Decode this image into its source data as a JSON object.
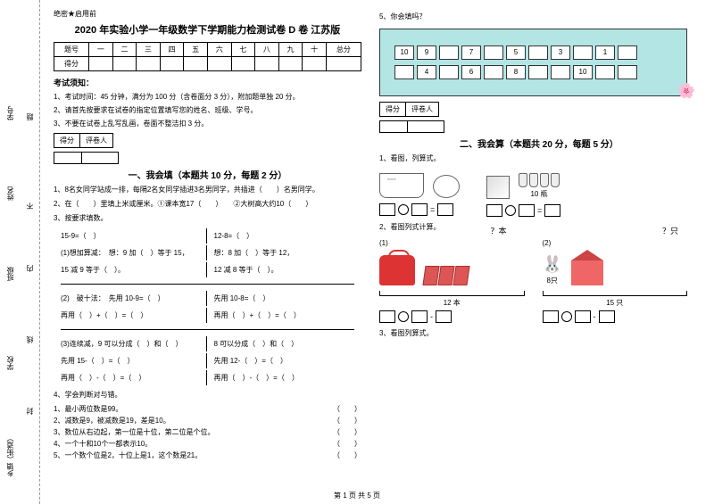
{
  "margin": {
    "l1": "乡镇（街道）",
    "l2": "学校",
    "l3": "班级",
    "l4": "姓名",
    "l5": "学号",
    "dash1": "封",
    "dash2": "线",
    "dash3": "内",
    "dash4": "不",
    "dash5": "答",
    "dash6": "题"
  },
  "header": {
    "secret": "绝密★启用前"
  },
  "title": "2020 年实验小学一年级数学下学期能力检测试卷 D 卷 江苏版",
  "scoreTable": {
    "headers": [
      "题号",
      "一",
      "二",
      "三",
      "四",
      "五",
      "六",
      "七",
      "八",
      "九",
      "十",
      "总分"
    ],
    "row2": "得分"
  },
  "notice": {
    "head": "考试须知：",
    "n1": "1、考试时间：45 分钟，满分为 100 分（含卷面分 3 分），附加题单独 20 分。",
    "n2": "2、请首先按要求在试卷的指定位置填写您的姓名、班级、学号。",
    "n3": "3、不要在试卷上乱写乱画，卷面不整洁扣 3 分。"
  },
  "scoreBox": {
    "c1": "得分",
    "c2": "评卷人"
  },
  "s1": {
    "title": "一、我会填（本题共 10 分，每题 2 分）",
    "q1": "1、8名女同学站成一排，每隔2名女同学插进3名男同学，共插进（　　）名男同学。",
    "q2": "2、在（　　）里填上米或厘米。①课本宽17（　　）　　②大树高大约10（　　）",
    "q3": "3、按要求填数。",
    "calc": {
      "l0a": "15-9=（　）",
      "l0b": "12-8=（　）",
      "l1a": "(1)想加算减：　想：9 加（　）等于 15，",
      "l1b": "想：8 加（　）等于 12，",
      "l2a": "15 减 9 等于（　）。",
      "l2b": "12 减 8 等于（　）。",
      "l3a": "(2)　破十法：　先用 10-9=（　）",
      "l3b": "先用 10-8=（　）",
      "l4a": "再用（　）+（　）=（　）",
      "l4b": "再用（　）+（　）=（　）",
      "l5a": "(3)连续减，9 可以分成（　）和（　）",
      "l5b": "8 可以分成（　）和（　）",
      "l6a": "先用 15-（　）=（　）",
      "l6b": "先用 12-（　）=（　）",
      "l7a": "再用（　）-（　）=（　）",
      "l7b": "再用（　）-（　）=（　）"
    },
    "q4": "4、学会判断对与错。",
    "j1": "1、最小两位数是99。",
    "j2": "2、减数是9，被减数是19，差是10。",
    "j3": "3、数位从右边起，第一位是十位，第二位是个位。",
    "j4": "4、一个十和10个一都表示10。",
    "j5": "5、一个数个位是2，十位上是1，这个数是21。",
    "paren": "（　　）"
  },
  "right": {
    "q5": "5、你会填吗？",
    "row1": [
      "10",
      "9",
      "",
      "7",
      "",
      "5",
      "",
      "3",
      "",
      "1",
      ""
    ],
    "row2": [
      "",
      "4",
      "",
      "6",
      "",
      "8",
      "",
      "",
      "10",
      "",
      ""
    ],
    "s2title": "二、我会算（本题共 20 分，每题 5 分）",
    "q1": "1、看图，列算式。",
    "jarLabel": "10 瓶",
    "q2": "2、看图列式计算。",
    "p1": "(1)",
    "p2": "(2)",
    "books": "12 本",
    "rabbits": "15 只",
    "eight": "8只",
    "qzhi": "？只",
    "qben": "？本",
    "q3": "3、看图列算式。"
  },
  "footer": "第 1 页 共 5 页"
}
